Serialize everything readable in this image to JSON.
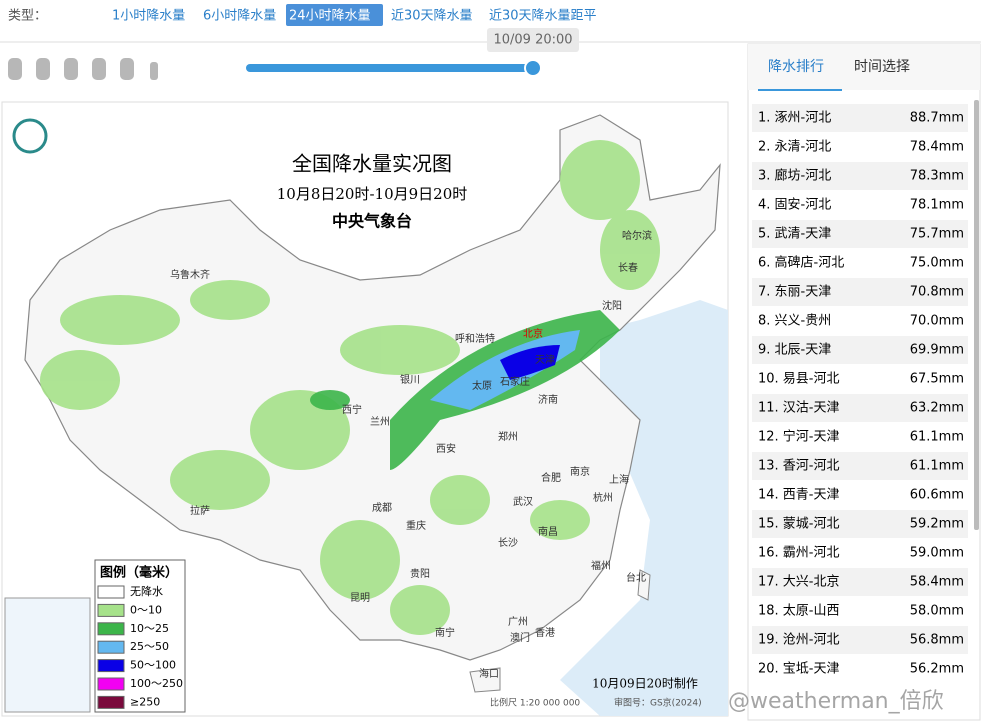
{
  "filter": {
    "label": "类型：",
    "tabs": [
      "1小时降水量",
      "6小时降水量",
      "24小时降水量",
      "近30天降水量",
      "近30天降水量距平"
    ],
    "active": 2
  },
  "timeline": {
    "time": "10/09 20:00"
  },
  "map": {
    "title": "全国降水量实况图",
    "subtitle": "10月8日20时-10月9日20时",
    "agency": "中央气象台",
    "legend_title": "图例（毫米）",
    "legend": [
      {
        "label": "无降水",
        "color": "#ffffff"
      },
      {
        "label": "0～10",
        "color": "#a6e28a"
      },
      {
        "label": "10～25",
        "color": "#3cb54a"
      },
      {
        "label": "25～50",
        "color": "#63b8f0"
      },
      {
        "label": "50～100",
        "color": "#0a00e6"
      },
      {
        "label": "100～250",
        "color": "#f200f2"
      },
      {
        "label": "≥250",
        "color": "#7a0a3c"
      }
    ],
    "footer": "10月09日20时制作",
    "scale": "比例尺 1:20 000 000",
    "approval": "审图号：GS京(2024)",
    "cities": [
      "乌鲁木齐",
      "哈尔滨",
      "长春",
      "沈阳",
      "北京",
      "天津",
      "呼和浩特",
      "银川",
      "太原",
      "石家庄",
      "济南",
      "西宁",
      "兰州",
      "郑州",
      "西安",
      "南京",
      "合肥",
      "上海",
      "杭州",
      "武汉",
      "成都",
      "拉萨",
      "重庆",
      "南昌",
      "长沙",
      "福州",
      "贵阳",
      "台北",
      "昆明",
      "广州",
      "南宁",
      "澳门",
      "香港",
      "海口"
    ]
  },
  "ranking": {
    "tabs": [
      "降水排行",
      "时间选择"
    ],
    "rows": [
      [
        "1. 涿州-河北",
        "88.7mm"
      ],
      [
        "2. 永清-河北",
        "78.4mm"
      ],
      [
        "3. 廊坊-河北",
        "78.3mm"
      ],
      [
        "4. 固安-河北",
        "78.1mm"
      ],
      [
        "5. 武清-天津",
        "75.7mm"
      ],
      [
        "6. 高碑店-河北",
        "75.0mm"
      ],
      [
        "7. 东丽-天津",
        "70.8mm"
      ],
      [
        "8. 兴义-贵州",
        "70.0mm"
      ],
      [
        "9. 北辰-天津",
        "69.9mm"
      ],
      [
        "10. 易县-河北",
        "67.5mm"
      ],
      [
        "11. 汉沽-天津",
        "63.2mm"
      ],
      [
        "12. 宁河-天津",
        "61.1mm"
      ],
      [
        "13. 香河-河北",
        "61.1mm"
      ],
      [
        "14. 西青-天津",
        "60.6mm"
      ],
      [
        "15. 蒙城-河北",
        "59.2mm"
      ],
      [
        "16. 霸州-河北",
        "59.0mm"
      ],
      [
        "17. 大兴-北京",
        "58.4mm"
      ],
      [
        "18. 太原-山西",
        "58.0mm"
      ],
      [
        "19. 沧州-河北",
        "56.8mm"
      ],
      [
        "20. 宝坻-天津",
        "56.2mm"
      ]
    ]
  },
  "watermark": "@weatherman_倍欣"
}
